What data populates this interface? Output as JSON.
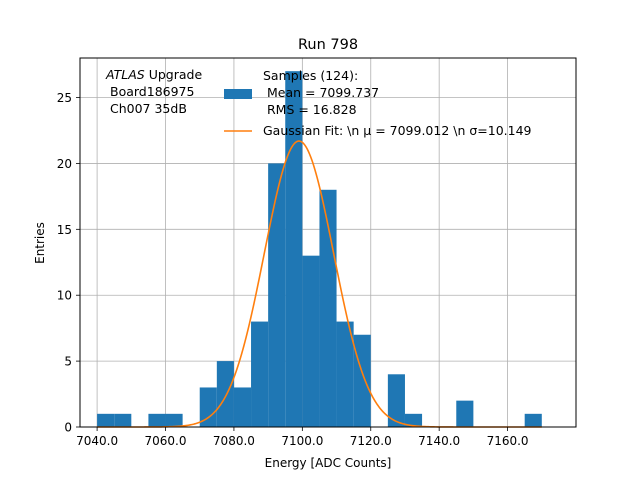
{
  "chart_data": {
    "type": "bar",
    "title": "Run 798",
    "xlabel": "Energy [ADC Counts]",
    "ylabel": "Entries",
    "xlim": [
      7035,
      7180
    ],
    "ylim": [
      0,
      28
    ],
    "grid": true,
    "x_ticks": [
      7040,
      7060,
      7080,
      7100,
      7120,
      7140,
      7160
    ],
    "x_tick_labels": [
      "7040.0",
      "7060.0",
      "7080.0",
      "7100.0",
      "7120.0",
      "7140.0",
      "7160.0"
    ],
    "y_ticks": [
      0,
      5,
      10,
      15,
      20,
      25
    ],
    "y_tick_labels": [
      "0",
      "5",
      "10",
      "15",
      "20",
      "25"
    ],
    "bin_edges": [
      7040,
      7045,
      7050,
      7055,
      7060,
      7065,
      7070,
      7075,
      7080,
      7085,
      7090,
      7095,
      7100,
      7105,
      7110,
      7115,
      7120,
      7125,
      7130,
      7135,
      7140,
      7145,
      7150,
      7155,
      7160,
      7165,
      7170
    ],
    "counts": [
      1,
      1,
      0,
      1,
      1,
      0,
      3,
      5,
      3,
      8,
      20,
      27,
      13,
      18,
      8,
      7,
      0,
      4,
      1,
      0,
      0,
      2,
      0,
      0,
      0,
      1
    ],
    "histogram_color": "#1f77b4",
    "fit": {
      "mu": 7099.012,
      "sigma": 10.149,
      "amplitude": 21.7,
      "color": "#ff7f0e"
    },
    "annotation": [
      "ATLAS",
      " Upgrade",
      "Board186975",
      "Ch007 35dB"
    ],
    "legend": {
      "placement": "top-right",
      "samples_lines": [
        "Samples (124):",
        " Mean = 7099.737",
        " RMS = 16.828"
      ],
      "fit_label": "Gaussian Fit: \\n μ = 7099.012 \\n σ=10.149"
    }
  }
}
